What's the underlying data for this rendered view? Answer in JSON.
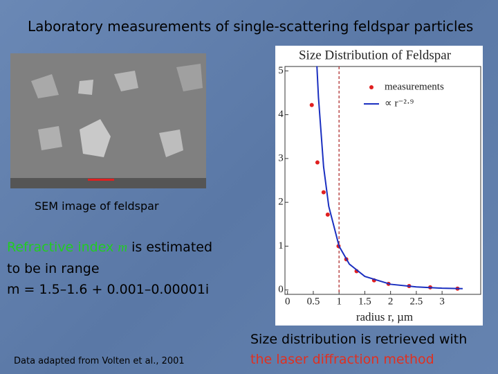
{
  "slide": {
    "title": "Laboratory measurements of single-scattering feldspar particles",
    "image_caption": "SEM image of feldspar",
    "refractive_1": "Refractive index",
    "refractive_m": "m",
    "refractive_2": "is estimated",
    "refractive_3": "to be in range",
    "refractive_4": "m = 1.5–1.6 + 0.001–0.00001i",
    "source": "Data adapted from Volten et al., 2001",
    "retrieval_1": "Size distribution is retrieved with",
    "retrieval_2": "the laser diffraction method"
  },
  "chart_data": {
    "type": "scatter",
    "title": "Size Distribution of Feldspar",
    "x_label": "radius r, µm",
    "series": [
      {
        "name": "measurements",
        "color": "#e02020",
        "mode": "markers",
        "x": [
          0.47,
          0.58,
          0.7,
          0.78,
          0.99,
          1.14,
          1.34,
          1.68,
          1.96,
          2.36,
          2.77,
          3.3
        ],
        "values": [
          4.22,
          2.91,
          2.23,
          1.72,
          1.0,
          0.7,
          0.43,
          0.22,
          0.14,
          0.09,
          0.06,
          0.03
        ]
      },
      {
        "name": "∝ r⁻²·⁹",
        "color": "#1a2fc0",
        "mode": "line",
        "x": [
          0.57,
          0.6,
          0.7,
          0.8,
          1.0,
          1.2,
          1.5,
          2.0,
          2.5,
          3.0,
          3.4
        ],
        "values": [
          5.11,
          4.4,
          2.81,
          1.91,
          1.0,
          0.59,
          0.31,
          0.13,
          0.07,
          0.04,
          0.03
        ]
      }
    ],
    "vline": {
      "x": 1,
      "color": "#b03030"
    },
    "xlim": [
      -0.05,
      3.75
    ],
    "ylim": [
      -0.1,
      5.1
    ],
    "xticks": [
      0,
      0.5,
      1,
      1.5,
      2,
      2.5,
      3
    ],
    "yticks": [
      0,
      1,
      2,
      3,
      4,
      5
    ],
    "legend": "upper-right"
  }
}
